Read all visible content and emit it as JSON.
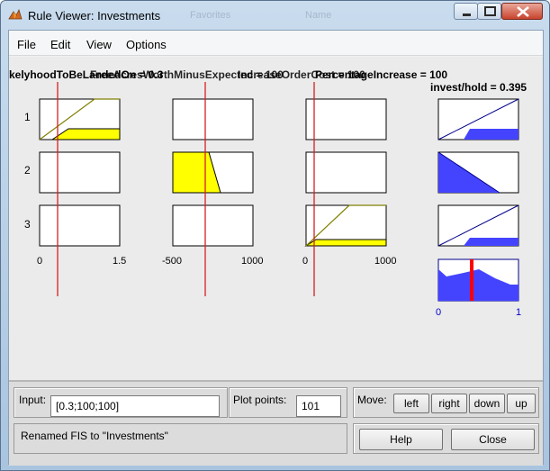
{
  "window": {
    "title": "Rule Viewer: Investments",
    "ghost_tabs": [
      "Favorites",
      "Name"
    ]
  },
  "menu": [
    "File",
    "Edit",
    "View",
    "Options"
  ],
  "plot": {
    "var_headers_overlapped": [
      "kelyhoodToBeLandedOn = 0.3",
      "FreeAcresWorthMinusExpected = 100",
      "IncreaseOrderCost = 100",
      "PercentageIncrease = 100"
    ],
    "output_header": "invest/hold = 0.395",
    "rule_numbers": [
      "1",
      "2",
      "3"
    ],
    "input_axes": [
      {
        "min": "0",
        "max": "1.5"
      },
      {
        "min": "-500",
        "max": "1000"
      },
      {
        "min": "0",
        "max": "1000"
      }
    ],
    "output_axis": {
      "min": "0",
      "max": "1"
    },
    "fill_colors": {
      "input": "#ffff00",
      "output": "#4444ff",
      "line": "#d62020",
      "agg_line": "#ff0000"
    }
  },
  "controls": {
    "input_label": "Input:",
    "input_value": "[0.3;100;100]",
    "plot_points_label": "Plot points:",
    "plot_points_value": "101",
    "move_label": "Move:",
    "move_buttons": [
      "left",
      "right",
      "down",
      "up"
    ],
    "status_text": "Renamed FIS to \"Investments\"",
    "help_label": "Help",
    "close_label": "Close"
  }
}
